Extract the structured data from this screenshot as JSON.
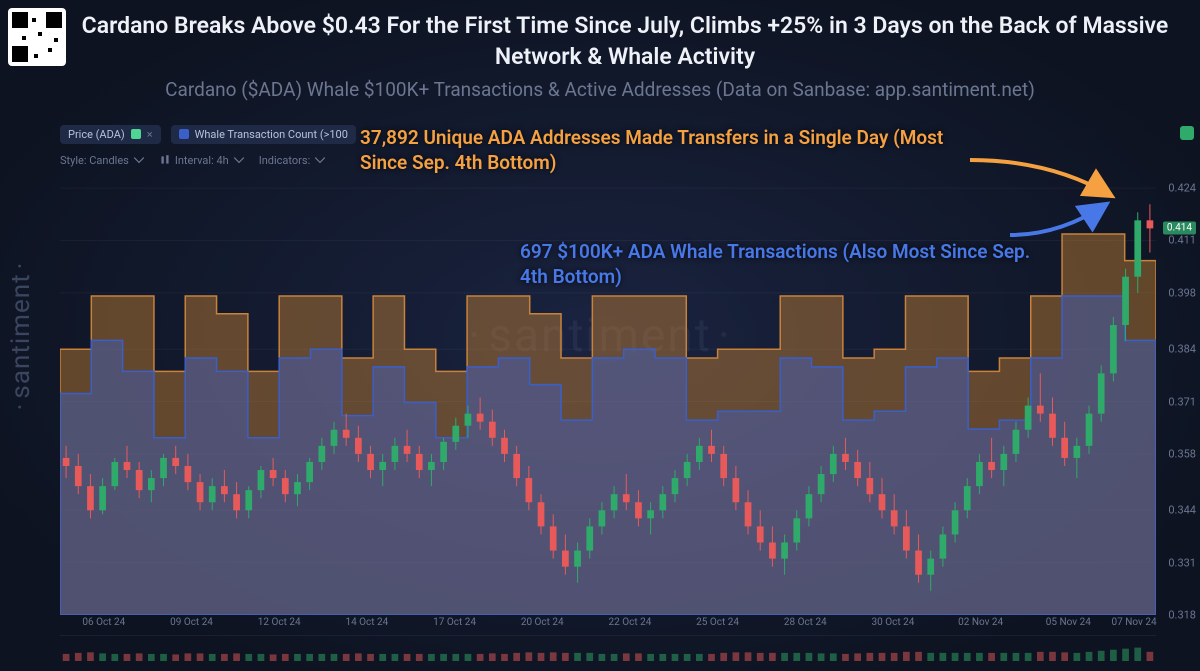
{
  "header": {
    "title": "Cardano Breaks Above $0.43 For the First Time Since July, Climbs +25% in 3 Days on the Back of Massive Network & Whale Activity",
    "subtitle": "Cardano ($ADA) Whale $100K+ Transactions & Active Addresses (Data on Sanbase: app.santiment.net)"
  },
  "watermark": "santiment",
  "toolbar": {
    "chip1_label": "Price (ADA)",
    "chip2_label": "Whale Transaction Count (>100",
    "style_label": "Style: Candles",
    "interval_label": "Interval: 4h",
    "indicators_label": "Indicators:",
    "chip1_swatch": "#4fd693",
    "chip2_swatch": "#3a5fc8"
  },
  "annotations": {
    "orange_text": "37,892 Unique ADA Addresses Made Transfers in a Single Day (Most Since Sep. 4th Bottom)",
    "blue_text": "697 $100K+ ADA Whale Transactions (Also Most Since Sep. 4th Bottom)",
    "orange_color": "#f5a142",
    "blue_color": "#4878e8"
  },
  "chart": {
    "background": "transparent",
    "grid_color": "rgba(100,110,140,0.12)",
    "candle_up": "#2faa6a",
    "candle_down": "#e85a5a",
    "addresses_fill": "rgba(200,130,50,0.45)",
    "addresses_stroke": "#c8823a",
    "whales_fill": "rgba(60,95,200,0.45)",
    "whales_stroke": "#3a5fc8",
    "ylim": [
      0.318,
      0.428
    ],
    "yticks": [
      0.318,
      0.331,
      0.344,
      0.358,
      0.371,
      0.384,
      0.398,
      0.411,
      0.424
    ],
    "price_badge": "0.414",
    "xlabels": [
      "06 Oct 24",
      "09 Oct 24",
      "12 Oct 24",
      "14 Oct 24",
      "17 Oct 24",
      "20 Oct 24",
      "22 Oct 24",
      "25 Oct 24",
      "28 Oct 24",
      "30 Oct 24",
      "02 Nov 24",
      "05 Nov 24",
      "07 Nov 24"
    ],
    "xpositions": [
      0.04,
      0.12,
      0.2,
      0.28,
      0.36,
      0.44,
      0.52,
      0.6,
      0.68,
      0.76,
      0.84,
      0.92,
      0.98
    ],
    "addresses_series": [
      0.6,
      0.72,
      0.72,
      0.55,
      0.72,
      0.68,
      0.55,
      0.72,
      0.72,
      0.58,
      0.72,
      0.6,
      0.55,
      0.72,
      0.72,
      0.68,
      0.58,
      0.72,
      0.72,
      0.72,
      0.58,
      0.6,
      0.6,
      0.72,
      0.72,
      0.58,
      0.6,
      0.72,
      0.72,
      0.55,
      0.58,
      0.72,
      0.86,
      0.86,
      0.8
    ],
    "whales_series": [
      0.5,
      0.62,
      0.55,
      0.4,
      0.58,
      0.55,
      0.4,
      0.58,
      0.6,
      0.45,
      0.56,
      0.48,
      0.4,
      0.56,
      0.58,
      0.52,
      0.44,
      0.58,
      0.6,
      0.58,
      0.44,
      0.46,
      0.46,
      0.58,
      0.56,
      0.44,
      0.46,
      0.56,
      0.58,
      0.42,
      0.44,
      0.58,
      0.72,
      0.72,
      0.62
    ],
    "candles": [
      {
        "o": 0.357,
        "h": 0.36,
        "l": 0.352,
        "c": 0.355
      },
      {
        "o": 0.355,
        "h": 0.358,
        "l": 0.348,
        "c": 0.35
      },
      {
        "o": 0.35,
        "h": 0.353,
        "l": 0.342,
        "c": 0.344
      },
      {
        "o": 0.344,
        "h": 0.352,
        "l": 0.343,
        "c": 0.35
      },
      {
        "o": 0.35,
        "h": 0.357,
        "l": 0.349,
        "c": 0.356
      },
      {
        "o": 0.356,
        "h": 0.36,
        "l": 0.352,
        "c": 0.354
      },
      {
        "o": 0.354,
        "h": 0.356,
        "l": 0.347,
        "c": 0.349
      },
      {
        "o": 0.349,
        "h": 0.354,
        "l": 0.346,
        "c": 0.352
      },
      {
        "o": 0.352,
        "h": 0.358,
        "l": 0.35,
        "c": 0.357
      },
      {
        "o": 0.357,
        "h": 0.36,
        "l": 0.353,
        "c": 0.355
      },
      {
        "o": 0.355,
        "h": 0.358,
        "l": 0.349,
        "c": 0.351
      },
      {
        "o": 0.351,
        "h": 0.353,
        "l": 0.344,
        "c": 0.346
      },
      {
        "o": 0.346,
        "h": 0.352,
        "l": 0.344,
        "c": 0.35
      },
      {
        "o": 0.35,
        "h": 0.354,
        "l": 0.346,
        "c": 0.348
      },
      {
        "o": 0.348,
        "h": 0.351,
        "l": 0.342,
        "c": 0.344
      },
      {
        "o": 0.344,
        "h": 0.35,
        "l": 0.342,
        "c": 0.349
      },
      {
        "o": 0.349,
        "h": 0.355,
        "l": 0.347,
        "c": 0.354
      },
      {
        "o": 0.354,
        "h": 0.357,
        "l": 0.35,
        "c": 0.352
      },
      {
        "o": 0.352,
        "h": 0.354,
        "l": 0.346,
        "c": 0.348
      },
      {
        "o": 0.348,
        "h": 0.353,
        "l": 0.345,
        "c": 0.351
      },
      {
        "o": 0.351,
        "h": 0.357,
        "l": 0.349,
        "c": 0.356
      },
      {
        "o": 0.356,
        "h": 0.362,
        "l": 0.354,
        "c": 0.36
      },
      {
        "o": 0.36,
        "h": 0.366,
        "l": 0.358,
        "c": 0.364
      },
      {
        "o": 0.364,
        "h": 0.368,
        "l": 0.36,
        "c": 0.362
      },
      {
        "o": 0.362,
        "h": 0.365,
        "l": 0.356,
        "c": 0.358
      },
      {
        "o": 0.358,
        "h": 0.36,
        "l": 0.352,
        "c": 0.354
      },
      {
        "o": 0.354,
        "h": 0.358,
        "l": 0.35,
        "c": 0.356
      },
      {
        "o": 0.356,
        "h": 0.362,
        "l": 0.354,
        "c": 0.36
      },
      {
        "o": 0.36,
        "h": 0.364,
        "l": 0.356,
        "c": 0.358
      },
      {
        "o": 0.358,
        "h": 0.36,
        "l": 0.352,
        "c": 0.354
      },
      {
        "o": 0.354,
        "h": 0.358,
        "l": 0.35,
        "c": 0.356
      },
      {
        "o": 0.356,
        "h": 0.362,
        "l": 0.354,
        "c": 0.361
      },
      {
        "o": 0.361,
        "h": 0.367,
        "l": 0.359,
        "c": 0.365
      },
      {
        "o": 0.365,
        "h": 0.37,
        "l": 0.362,
        "c": 0.368
      },
      {
        "o": 0.368,
        "h": 0.372,
        "l": 0.364,
        "c": 0.366
      },
      {
        "o": 0.366,
        "h": 0.369,
        "l": 0.36,
        "c": 0.362
      },
      {
        "o": 0.362,
        "h": 0.364,
        "l": 0.356,
        "c": 0.358
      },
      {
        "o": 0.358,
        "h": 0.36,
        "l": 0.35,
        "c": 0.352
      },
      {
        "o": 0.352,
        "h": 0.355,
        "l": 0.344,
        "c": 0.346
      },
      {
        "o": 0.346,
        "h": 0.348,
        "l": 0.338,
        "c": 0.34
      },
      {
        "o": 0.34,
        "h": 0.343,
        "l": 0.332,
        "c": 0.334
      },
      {
        "o": 0.334,
        "h": 0.338,
        "l": 0.328,
        "c": 0.33
      },
      {
        "o": 0.33,
        "h": 0.336,
        "l": 0.326,
        "c": 0.334
      },
      {
        "o": 0.334,
        "h": 0.342,
        "l": 0.332,
        "c": 0.34
      },
      {
        "o": 0.34,
        "h": 0.346,
        "l": 0.338,
        "c": 0.344
      },
      {
        "o": 0.344,
        "h": 0.35,
        "l": 0.342,
        "c": 0.348
      },
      {
        "o": 0.348,
        "h": 0.353,
        "l": 0.344,
        "c": 0.346
      },
      {
        "o": 0.346,
        "h": 0.349,
        "l": 0.34,
        "c": 0.342
      },
      {
        "o": 0.342,
        "h": 0.346,
        "l": 0.338,
        "c": 0.344
      },
      {
        "o": 0.344,
        "h": 0.35,
        "l": 0.342,
        "c": 0.348
      },
      {
        "o": 0.348,
        "h": 0.354,
        "l": 0.346,
        "c": 0.352
      },
      {
        "o": 0.352,
        "h": 0.358,
        "l": 0.35,
        "c": 0.356
      },
      {
        "o": 0.356,
        "h": 0.362,
        "l": 0.354,
        "c": 0.36
      },
      {
        "o": 0.36,
        "h": 0.364,
        "l": 0.356,
        "c": 0.358
      },
      {
        "o": 0.358,
        "h": 0.36,
        "l": 0.35,
        "c": 0.352
      },
      {
        "o": 0.352,
        "h": 0.355,
        "l": 0.344,
        "c": 0.346
      },
      {
        "o": 0.346,
        "h": 0.349,
        "l": 0.338,
        "c": 0.34
      },
      {
        "o": 0.34,
        "h": 0.344,
        "l": 0.334,
        "c": 0.336
      },
      {
        "o": 0.336,
        "h": 0.34,
        "l": 0.33,
        "c": 0.332
      },
      {
        "o": 0.332,
        "h": 0.338,
        "l": 0.328,
        "c": 0.336
      },
      {
        "o": 0.336,
        "h": 0.344,
        "l": 0.334,
        "c": 0.342
      },
      {
        "o": 0.342,
        "h": 0.35,
        "l": 0.34,
        "c": 0.348
      },
      {
        "o": 0.348,
        "h": 0.355,
        "l": 0.346,
        "c": 0.353
      },
      {
        "o": 0.353,
        "h": 0.36,
        "l": 0.351,
        "c": 0.358
      },
      {
        "o": 0.358,
        "h": 0.362,
        "l": 0.354,
        "c": 0.356
      },
      {
        "o": 0.356,
        "h": 0.359,
        "l": 0.35,
        "c": 0.352
      },
      {
        "o": 0.352,
        "h": 0.356,
        "l": 0.346,
        "c": 0.348
      },
      {
        "o": 0.348,
        "h": 0.352,
        "l": 0.342,
        "c": 0.344
      },
      {
        "o": 0.344,
        "h": 0.348,
        "l": 0.338,
        "c": 0.34
      },
      {
        "o": 0.34,
        "h": 0.344,
        "l": 0.332,
        "c": 0.334
      },
      {
        "o": 0.334,
        "h": 0.338,
        "l": 0.326,
        "c": 0.328
      },
      {
        "o": 0.328,
        "h": 0.334,
        "l": 0.324,
        "c": 0.332
      },
      {
        "o": 0.332,
        "h": 0.34,
        "l": 0.33,
        "c": 0.338
      },
      {
        "o": 0.338,
        "h": 0.346,
        "l": 0.336,
        "c": 0.344
      },
      {
        "o": 0.344,
        "h": 0.352,
        "l": 0.342,
        "c": 0.35
      },
      {
        "o": 0.35,
        "h": 0.358,
        "l": 0.348,
        "c": 0.356
      },
      {
        "o": 0.356,
        "h": 0.362,
        "l": 0.352,
        "c": 0.354
      },
      {
        "o": 0.354,
        "h": 0.36,
        "l": 0.35,
        "c": 0.358
      },
      {
        "o": 0.358,
        "h": 0.366,
        "l": 0.356,
        "c": 0.364
      },
      {
        "o": 0.364,
        "h": 0.372,
        "l": 0.362,
        "c": 0.37
      },
      {
        "o": 0.37,
        "h": 0.378,
        "l": 0.366,
        "c": 0.368
      },
      {
        "o": 0.368,
        "h": 0.372,
        "l": 0.36,
        "c": 0.362
      },
      {
        "o": 0.362,
        "h": 0.366,
        "l": 0.355,
        "c": 0.357
      },
      {
        "o": 0.357,
        "h": 0.362,
        "l": 0.352,
        "c": 0.36
      },
      {
        "o": 0.36,
        "h": 0.37,
        "l": 0.358,
        "c": 0.368
      },
      {
        "o": 0.368,
        "h": 0.38,
        "l": 0.366,
        "c": 0.378
      },
      {
        "o": 0.378,
        "h": 0.392,
        "l": 0.376,
        "c": 0.39
      },
      {
        "o": 0.39,
        "h": 0.404,
        "l": 0.386,
        "c": 0.402
      },
      {
        "o": 0.402,
        "h": 0.418,
        "l": 0.398,
        "c": 0.416
      },
      {
        "o": 0.416,
        "h": 0.42,
        "l": 0.408,
        "c": 0.414
      }
    ]
  }
}
